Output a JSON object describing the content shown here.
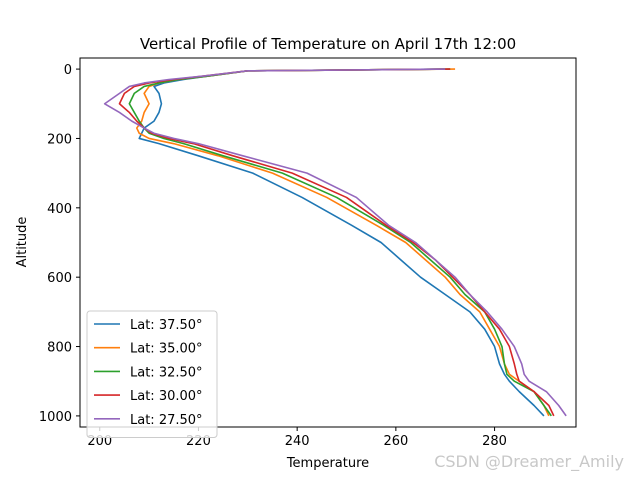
{
  "chart_data": {
    "type": "line",
    "title": "Vertical Profile of Temperature on April 17th 12:00",
    "xlabel": "Temperature",
    "ylabel": "Altitude",
    "xlim": [
      196,
      296.5
    ],
    "ylim": [
      1032,
      -32
    ],
    "y_inverted": true,
    "xticks": [
      200,
      220,
      240,
      260,
      280
    ],
    "yticks": [
      0,
      200,
      400,
      600,
      800,
      1000
    ],
    "grid": false,
    "legend_position": "lower-left",
    "series": [
      {
        "name": "Lat: 37.50°",
        "color": "#1f77b4",
        "x": [
          270,
          230,
          222,
          217,
          213,
          211,
          212,
          212.5,
          212,
          211,
          209,
          208.5,
          208,
          212,
          220,
          231,
          241,
          251,
          257,
          261,
          265,
          270,
          275,
          278,
          280,
          281,
          282,
          283,
          285,
          288,
          290
        ],
        "y": [
          0,
          5,
          20,
          30,
          40,
          50,
          70,
          100,
          125,
          150,
          170,
          185,
          200,
          215,
          250,
          300,
          370,
          450,
          500,
          550,
          600,
          650,
          700,
          750,
          800,
          850,
          880,
          900,
          930,
          970,
          1000
        ]
      },
      {
        "name": "Lat: 35.00°",
        "color": "#ff7f0e",
        "x": [
          272,
          230,
          222,
          216,
          212,
          210,
          209,
          210,
          209,
          208.5,
          207.5,
          208,
          210,
          215,
          224,
          235,
          246,
          256,
          262,
          266,
          270,
          273,
          277,
          279,
          281,
          282,
          283,
          285,
          288,
          290,
          291
        ],
        "y": [
          0,
          5,
          20,
          30,
          40,
          50,
          70,
          100,
          125,
          150,
          170,
          185,
          200,
          215,
          250,
          300,
          370,
          450,
          500,
          550,
          600,
          650,
          700,
          750,
          800,
          850,
          880,
          900,
          930,
          970,
          1000
        ]
      },
      {
        "name": "Lat: 32.50°",
        "color": "#2ca02c",
        "x": [
          271,
          230,
          222,
          216,
          212,
          209,
          207,
          206,
          207,
          208,
          209,
          210,
          213,
          217,
          225,
          237,
          248,
          257.5,
          263,
          267,
          271,
          274,
          278,
          280,
          281.5,
          282,
          282.5,
          284,
          288,
          290,
          291.5
        ],
        "y": [
          0,
          5,
          20,
          30,
          40,
          50,
          70,
          100,
          125,
          150,
          170,
          185,
          200,
          215,
          250,
          300,
          370,
          450,
          500,
          550,
          600,
          650,
          700,
          750,
          800,
          850,
          880,
          900,
          930,
          970,
          1000
        ]
      },
      {
        "name": "Lat: 30.00°",
        "color": "#d62728",
        "x": [
          271,
          230,
          221,
          215,
          210,
          207,
          205,
          204,
          206,
          207.5,
          209,
          210.5,
          214,
          219,
          227,
          239,
          250,
          258,
          263.5,
          268,
          271.5,
          275,
          278,
          281,
          283,
          284,
          284.5,
          285,
          288,
          291,
          292
        ],
        "y": [
          0,
          5,
          20,
          30,
          40,
          50,
          70,
          100,
          125,
          150,
          170,
          185,
          200,
          215,
          250,
          300,
          370,
          450,
          500,
          550,
          600,
          650,
          700,
          750,
          800,
          850,
          880,
          900,
          930,
          970,
          1000
        ]
      },
      {
        "name": "Lat: 27.50°",
        "color": "#9467bd",
        "x": [
          270,
          230,
          221,
          214,
          209,
          206,
          204,
          201,
          204,
          206.5,
          209,
          211,
          215,
          220,
          229,
          242,
          252,
          258.5,
          264,
          268,
          272,
          275,
          278.5,
          281.5,
          284,
          285.5,
          286,
          287,
          290.5,
          293,
          294.5
        ],
        "y": [
          0,
          5,
          20,
          30,
          40,
          50,
          70,
          100,
          125,
          150,
          170,
          185,
          200,
          215,
          250,
          300,
          370,
          450,
          500,
          550,
          600,
          650,
          700,
          750,
          800,
          850,
          880,
          900,
          930,
          970,
          1000
        ]
      }
    ]
  },
  "watermark": "CSDN @Dreamer_Amily"
}
